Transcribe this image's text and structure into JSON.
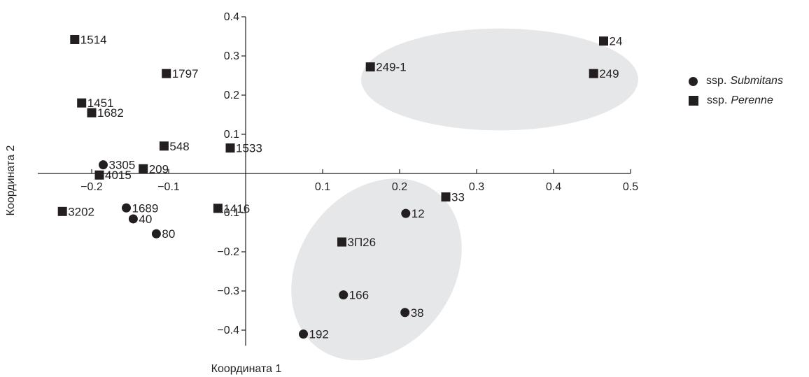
{
  "chart_data": {
    "type": "scatter",
    "xlabel": "Координата 1",
    "ylabel": "Координата 2",
    "xlim": [
      -0.27,
      0.5
    ],
    "ylim": [
      -0.44,
      0.4
    ],
    "xticks": [
      -0.2,
      -0.1,
      0.1,
      0.2,
      0.3,
      0.4,
      0.5
    ],
    "xtick_labels": [
      "−0.2",
      "−0.1",
      "0.1",
      "0.2",
      "0.3",
      "0.4",
      "0.5"
    ],
    "yticks": [
      0.4,
      0.3,
      0.2,
      0.1,
      -0.1,
      -0.2,
      -0.3,
      -0.4
    ],
    "ytick_labels": [
      "0.4",
      "0.3",
      "0.2",
      "0.1",
      "−0.1",
      "−0.2",
      "−0.3",
      "−0.4"
    ],
    "legend_position": "right",
    "grid": false,
    "colors": {
      "marker": "#231f20",
      "cluster_fill": "#e6e7e8"
    },
    "series": [
      {
        "name": "Submitans",
        "legend_prefix": "ssp.",
        "marker": "circle",
        "points": [
          {
            "label": "3305",
            "x": -0.185,
            "y": 0.022
          },
          {
            "label": "1689",
            "x": -0.155,
            "y": -0.088
          },
          {
            "label": "40",
            "x": -0.146,
            "y": -0.116
          },
          {
            "label": "80",
            "x": -0.116,
            "y": -0.154
          },
          {
            "label": "12",
            "x": 0.208,
            "y": -0.102
          },
          {
            "label": "166",
            "x": 0.127,
            "y": -0.31
          },
          {
            "label": "38",
            "x": 0.207,
            "y": -0.355
          },
          {
            "label": "192",
            "x": 0.075,
            "y": -0.41
          }
        ]
      },
      {
        "name": "Perenne",
        "legend_prefix": "ssp.",
        "marker": "square",
        "points": [
          {
            "label": "1514",
            "x": -0.222,
            "y": 0.342
          },
          {
            "label": "1797",
            "x": -0.103,
            "y": 0.255
          },
          {
            "label": "1451",
            "x": -0.213,
            "y": 0.18
          },
          {
            "label": "1682",
            "x": -0.2,
            "y": 0.155
          },
          {
            "label": "548",
            "x": -0.106,
            "y": 0.07
          },
          {
            "label": "1533",
            "x": -0.02,
            "y": 0.065
          },
          {
            "label": "209",
            "x": -0.133,
            "y": 0.012
          },
          {
            "label": "4015",
            "x": -0.19,
            "y": -0.004
          },
          {
            "label": "3202",
            "x": -0.238,
            "y": -0.097
          },
          {
            "label": "1416",
            "x": -0.036,
            "y": -0.089
          },
          {
            "label": "249-1",
            "x": 0.162,
            "y": 0.272
          },
          {
            "label": "24",
            "x": 0.465,
            "y": 0.338
          },
          {
            "label": "249",
            "x": 0.452,
            "y": 0.255
          },
          {
            "label": "33",
            "x": 0.26,
            "y": -0.06
          },
          {
            "label": "3П26",
            "x": 0.125,
            "y": -0.175
          }
        ]
      }
    ],
    "clusters": [
      {
        "shape": "ellipse",
        "cx": 0.33,
        "cy": 0.24,
        "rx": 0.18,
        "ry": 0.13,
        "rotate": 0
      },
      {
        "shape": "ellipse",
        "cx": 0.17,
        "cy": -0.245,
        "rx": 0.1,
        "ry": 0.25,
        "rotate": 37
      }
    ]
  }
}
